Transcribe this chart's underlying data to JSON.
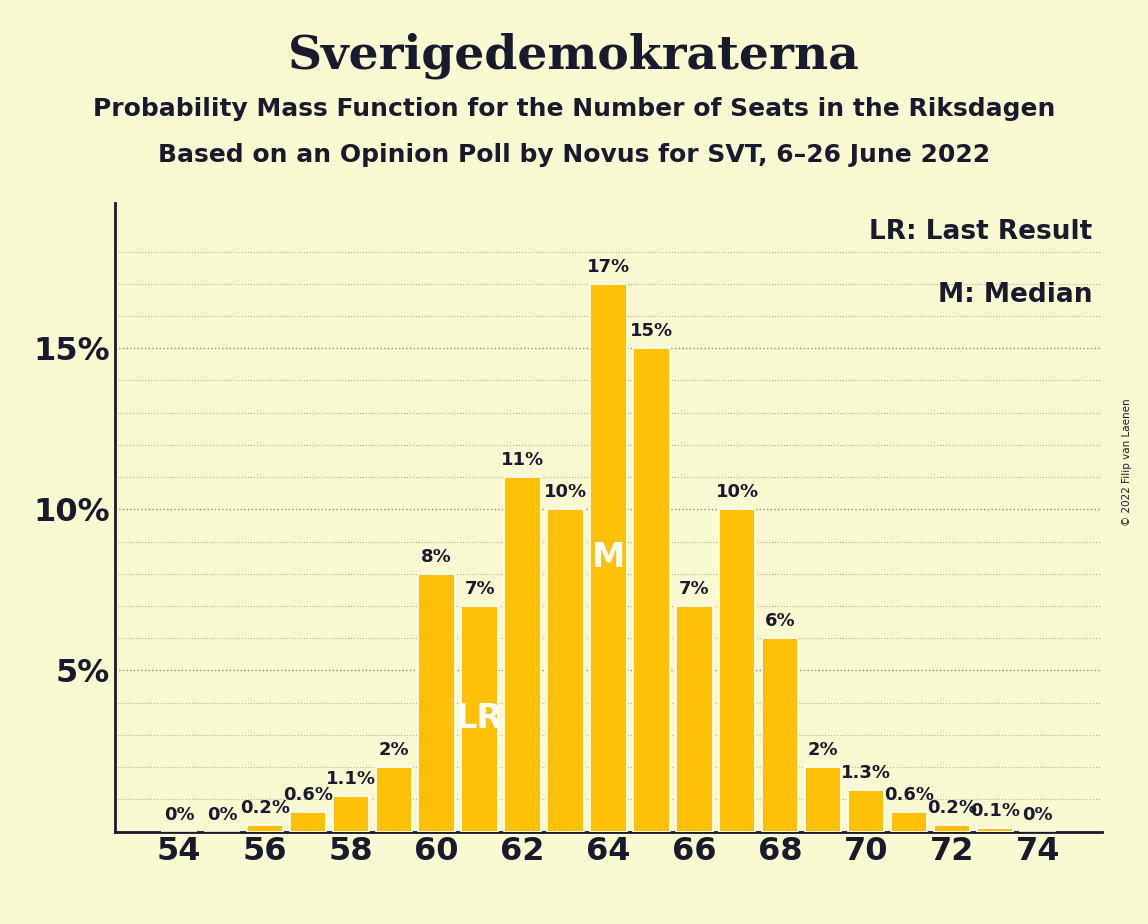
{
  "title": "Sverigedemokraterna",
  "subtitle1": "Probability Mass Function for the Number of Seats in the Riksdagen",
  "subtitle2": "Based on an Opinion Poll by Novus for SVT, 6–26 June 2022",
  "copyright": "© 2022 Filip van Laenen",
  "seats": [
    54,
    55,
    56,
    57,
    58,
    59,
    60,
    61,
    62,
    63,
    64,
    65,
    66,
    67,
    68,
    69,
    70,
    71,
    72,
    73,
    74
  ],
  "probabilities": [
    0.0,
    0.0,
    0.2,
    0.6,
    1.1,
    2.0,
    8.0,
    7.0,
    11.0,
    10.0,
    17.0,
    15.0,
    7.0,
    10.0,
    6.0,
    2.0,
    1.3,
    0.6,
    0.2,
    0.1,
    0.0
  ],
  "bar_color": "#FFC107",
  "bar_edge_color": "#FFFFFF",
  "background_color": "#FAFAD2",
  "text_color": "#1a1a2e",
  "lr_seat": 61,
  "median_seat": 64,
  "ylim_max": 19.5,
  "yticks": [
    5,
    10,
    15
  ],
  "ytick_labels": [
    "5%",
    "10%",
    "15%"
  ],
  "xtick_seats": [
    54,
    56,
    58,
    60,
    62,
    64,
    66,
    68,
    70,
    72,
    74
  ],
  "legend_lr": "LR: Last Result",
  "legend_m": "M: Median",
  "lr_label": "LR",
  "m_label": "M",
  "title_fontsize": 34,
  "subtitle_fontsize": 18,
  "axis_fontsize": 23,
  "bar_label_fontsize": 13,
  "legend_fontsize": 19,
  "annotation_fontsize": 24,
  "grid_color": "#444444",
  "grid_alpha": 0.6
}
